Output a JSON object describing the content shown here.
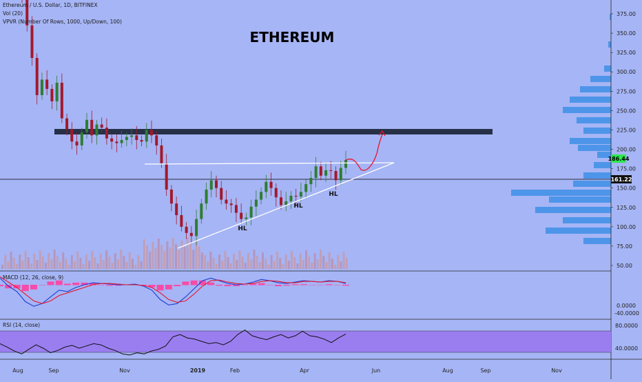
{
  "header": {
    "symbol": "Ethereum / U.S. Dollar, 1D, BITFINEX",
    "vol": "Vol (20)",
    "vpvr": "VPVR (Number Of Rows, 1000, Up/Down, 100)",
    "macd": "MACD (12, 26, close, 9)",
    "rsi": "RSI (14, close)"
  },
  "colors": {
    "background": "#a6b5f5",
    "up_candle": "#2e7d32",
    "down_candle": "#a3192b",
    "trendline": "#ffffff",
    "resistance_zone": "#263047",
    "projection": "#e8142a",
    "current_price_badge": "#2ee84d",
    "level_badge": "#111111",
    "vpvr": "#3d8fe6",
    "macd_line": "#1a3ed4",
    "signal_line": "#e8142a",
    "histogram": "#ff3fa0",
    "rsi_band": "#9a7ef0",
    "rsi_line": "#111111"
  },
  "chart_data": [
    {
      "type": "candlestick",
      "title": "ETHEREUM",
      "x_ticks": [
        "Aug",
        "Sep",
        "Nov",
        "2019",
        "Feb",
        "Apr",
        "Jun",
        "Aug",
        "Sep",
        "Nov"
      ],
      "y_ticks": [
        "375.00",
        "350.00",
        "325.00",
        "300.00",
        "275.00",
        "250.00",
        "225.00",
        "200.00",
        "175.00",
        "150.00",
        "125.00",
        "100.00",
        "75.00",
        "50.00"
      ],
      "ylim": [
        45,
        390
      ],
      "current_price": "186.44",
      "horizontal_level": "161.22",
      "resistance_zone": [
        218,
        226
      ],
      "annotations": [
        "HL",
        "HL",
        "HL"
      ],
      "series": [
        {
          "name": "close",
          "values": [
            395,
            360,
            318,
            270,
            290,
            278,
            262,
            286,
            240,
            226,
            210,
            205,
            222,
            238,
            218,
            232,
            228,
            214,
            210,
            208,
            212,
            216,
            218,
            212,
            210,
            225,
            218,
            205,
            182,
            148,
            130,
            115,
            100,
            92,
            88,
            110,
            130,
            148,
            160,
            150,
            135,
            130,
            128,
            118,
            110,
            112,
            126,
            135,
            145,
            158,
            150,
            138,
            128,
            133,
            140,
            139,
            145,
            155,
            163,
            178,
            166,
            173,
            172,
            160,
            176,
            186
          ]
        }
      ]
    },
    {
      "type": "line",
      "title": "MACD (12, 26, close, 9)",
      "y_ticks": [
        "0.0000",
        "-40.0000"
      ],
      "ylim": [
        -50,
        16
      ],
      "series": [
        {
          "name": "macd",
          "values": [
            10,
            -2,
            -10,
            -25,
            -32,
            -28,
            -18,
            -8,
            -10,
            -4,
            0,
            3,
            2,
            1,
            0,
            0,
            1,
            -2,
            -8,
            -22,
            -30,
            -28,
            -18,
            -6,
            6,
            10,
            6,
            2,
            0,
            1,
            4,
            8,
            6,
            3,
            2,
            4,
            6,
            5,
            4,
            6,
            5,
            2
          ]
        },
        {
          "name": "signal",
          "values": [
            12,
            4,
            -4,
            -14,
            -24,
            -28,
            -24,
            -16,
            -12,
            -8,
            -4,
            0,
            2,
            2,
            1,
            0,
            0,
            -1,
            -4,
            -12,
            -22,
            -26,
            -24,
            -14,
            -2,
            6,
            7,
            4,
            2,
            1,
            2,
            5,
            6,
            5,
            3,
            3,
            5,
            5,
            4,
            5,
            5,
            3
          ]
        }
      ]
    },
    {
      "type": "line",
      "title": "RSI (14, close)",
      "y_ticks": [
        "80.0000",
        "40.0000"
      ],
      "ylim": [
        18,
        90
      ],
      "band": [
        30,
        70
      ],
      "series": [
        {
          "name": "rsi",
          "values": [
            48,
            42,
            35,
            30,
            38,
            46,
            40,
            32,
            36,
            42,
            45,
            40,
            44,
            48,
            46,
            40,
            36,
            30,
            28,
            32,
            30,
            35,
            38,
            44,
            60,
            64,
            58,
            56,
            52,
            48,
            50,
            46,
            52,
            64,
            72,
            62,
            58,
            55,
            60,
            64,
            58,
            62,
            70,
            62,
            60,
            56,
            50,
            58,
            65
          ]
        }
      ]
    }
  ]
}
